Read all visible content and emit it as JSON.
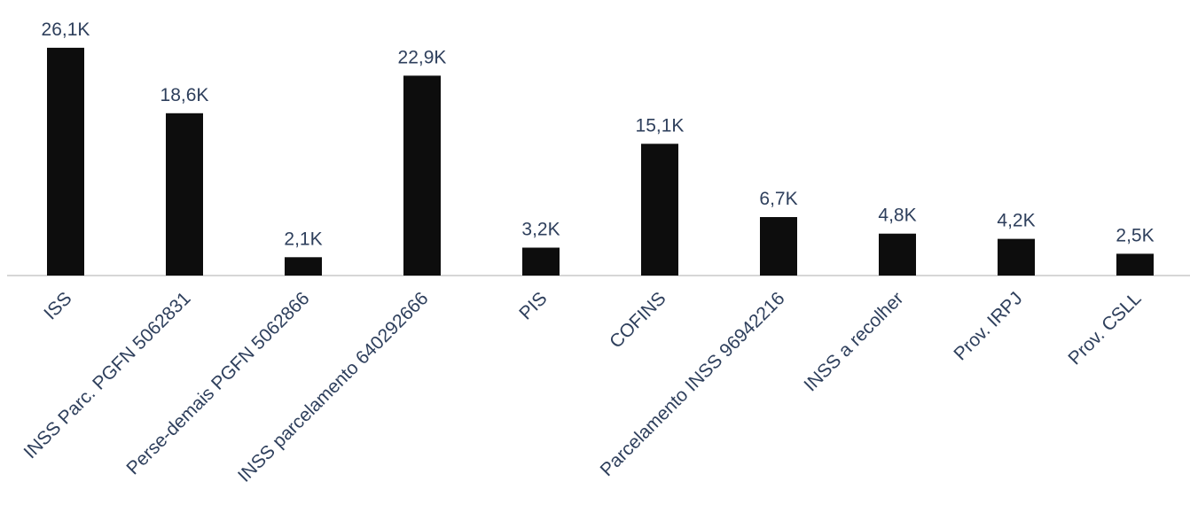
{
  "chart_data": {
    "type": "bar",
    "categories": [
      "ISS",
      "INSS Parc. PGFN 5062831",
      "Perse-demais PGFN 5062866",
      "INSS parcelamento 640292666",
      "PIS",
      "COFINS",
      "Parcelamento INSS 96942216",
      "INSS a recolher",
      "Prov. IRPJ",
      "Prov. CSLL"
    ],
    "values": [
      26.1,
      18.6,
      2.1,
      22.9,
      3.2,
      15.1,
      6.7,
      4.8,
      4.2,
      2.5
    ],
    "data_labels": [
      "26,1K",
      "18,6K",
      "2,1K",
      "22,9K",
      "3,2K",
      "15,1K",
      "6,7K",
      "4,8K",
      "4,2K",
      "2,5K"
    ],
    "title": "",
    "xlabel": "",
    "ylabel": "",
    "grid": false,
    "legend": "none",
    "colors": {
      "bar": "#0d0d0d",
      "text": "#2e3f5c",
      "axis": "#c8c8c8"
    }
  }
}
